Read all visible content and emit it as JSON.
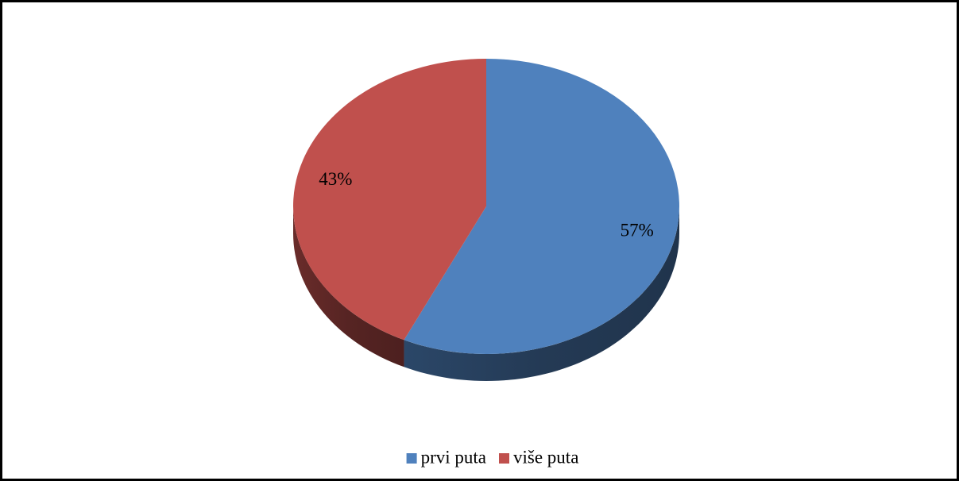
{
  "chart_data": {
    "type": "pie",
    "categories": [
      "prvi puta",
      "više puta"
    ],
    "series": [
      {
        "values": [
          57,
          43
        ],
        "value_labels": [
          "57%",
          "43%"
        ],
        "colors": [
          "#4f81bd",
          "#c0504d"
        ]
      }
    ],
    "legend": "bottom"
  }
}
